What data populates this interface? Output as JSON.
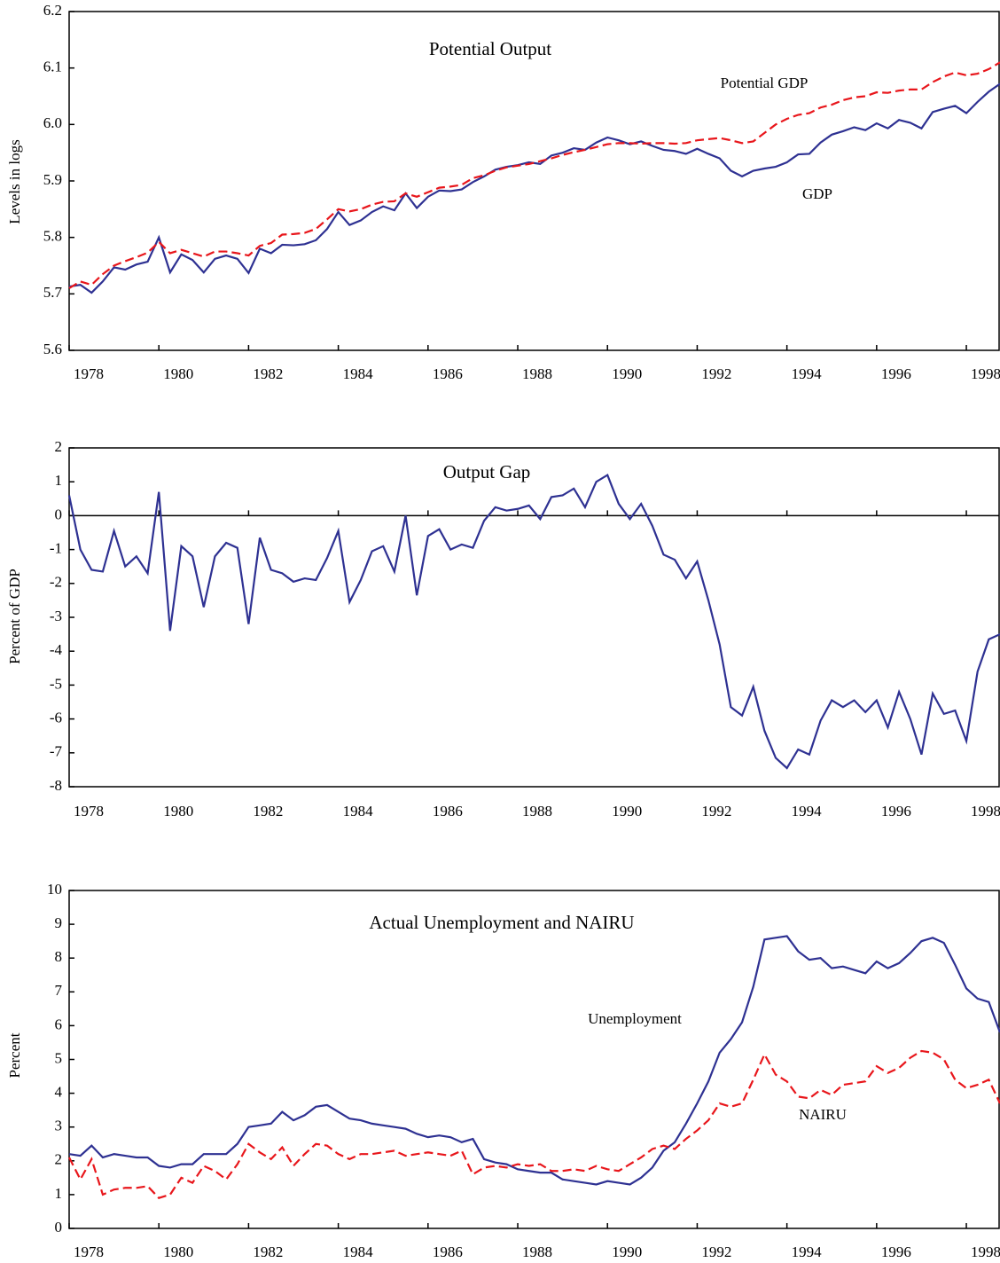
{
  "chart_data": [
    {
      "type": "line",
      "title": "Potential Output",
      "ylabel": "Levels in logs",
      "annotations": [
        "Potential GDP",
        "GDP"
      ],
      "x": [
        1978,
        1978.25,
        1978.5,
        1978.75,
        1979,
        1979.25,
        1979.5,
        1979.75,
        1980,
        1980.25,
        1980.5,
        1980.75,
        1981,
        1981.25,
        1981.5,
        1981.75,
        1982,
        1982.25,
        1982.5,
        1982.75,
        1983,
        1983.25,
        1983.5,
        1983.75,
        1984,
        1984.25,
        1984.5,
        1984.75,
        1985,
        1985.25,
        1985.5,
        1985.75,
        1986,
        1986.25,
        1986.5,
        1986.75,
        1987,
        1987.25,
        1987.5,
        1987.75,
        1988,
        1988.25,
        1988.5,
        1988.75,
        1989,
        1989.25,
        1989.5,
        1989.75,
        1990,
        1990.25,
        1990.5,
        1990.75,
        1991,
        1991.25,
        1991.5,
        1991.75,
        1992,
        1992.25,
        1992.5,
        1992.75,
        1993,
        1993.25,
        1993.5,
        1993.75,
        1994,
        1994.25,
        1994.5,
        1994.75,
        1995,
        1995.25,
        1995.5,
        1995.75,
        1996,
        1996.25,
        1996.5,
        1996.75,
        1997,
        1997.25,
        1997.5,
        1997.75,
        1998,
        1998.25,
        1998.5,
        1998.75
      ],
      "series": [
        {
          "name": "GDP",
          "color": "#2e3192",
          "style": "solid",
          "values": [
            5.713,
            5.716,
            5.702,
            5.722,
            5.747,
            5.743,
            5.752,
            5.757,
            5.8,
            5.738,
            5.77,
            5.76,
            5.738,
            5.762,
            5.768,
            5.762,
            5.737,
            5.78,
            5.772,
            5.787,
            5.786,
            5.788,
            5.795,
            5.815,
            5.845,
            5.822,
            5.83,
            5.845,
            5.855,
            5.848,
            5.878,
            5.852,
            5.872,
            5.883,
            5.882,
            5.885,
            5.898,
            5.908,
            5.92,
            5.925,
            5.928,
            5.933,
            5.93,
            5.945,
            5.95,
            5.958,
            5.955,
            5.968,
            5.977,
            5.972,
            5.965,
            5.97,
            5.962,
            5.955,
            5.953,
            5.948,
            5.957,
            5.948,
            5.94,
            5.918,
            5.908,
            5.918,
            5.922,
            5.925,
            5.933,
            5.947,
            5.948,
            5.968,
            5.982,
            5.988,
            5.995,
            5.99,
            6.002,
            5.993,
            6.008,
            6.003,
            5.993,
            6.022,
            6.028,
            6.033,
            6.02,
            6.04,
            6.058,
            6.072
          ]
        },
        {
          "name": "Potential GDP",
          "color": "#e8161b",
          "style": "dashed",
          "values": [
            5.71,
            5.722,
            5.716,
            5.735,
            5.75,
            5.758,
            5.765,
            5.773,
            5.792,
            5.772,
            5.778,
            5.772,
            5.766,
            5.775,
            5.775,
            5.772,
            5.768,
            5.785,
            5.79,
            5.805,
            5.806,
            5.808,
            5.815,
            5.832,
            5.85,
            5.846,
            5.85,
            5.858,
            5.863,
            5.864,
            5.878,
            5.872,
            5.88,
            5.888,
            5.89,
            5.893,
            5.905,
            5.91,
            5.918,
            5.924,
            5.927,
            5.93,
            5.935,
            5.94,
            5.946,
            5.951,
            5.955,
            5.96,
            5.965,
            5.967,
            5.967,
            5.966,
            5.967,
            5.967,
            5.966,
            5.967,
            5.972,
            5.974,
            5.976,
            5.972,
            5.967,
            5.97,
            5.985,
            6.0,
            6.01,
            6.017,
            6.02,
            6.03,
            6.035,
            6.043,
            6.048,
            6.05,
            6.057,
            6.056,
            6.06,
            6.062,
            6.062,
            6.075,
            6.085,
            6.092,
            6.087,
            6.09,
            6.098,
            6.11
          ]
        }
      ],
      "xlim": [
        1978,
        1998.75
      ],
      "xticks": [
        1978,
        1980,
        1982,
        1984,
        1986,
        1988,
        1990,
        1992,
        1994,
        1996,
        1998
      ],
      "ylim": [
        5.6,
        6.2
      ],
      "yticks": [
        5.6,
        5.7,
        5.8,
        5.9,
        {
          "value": 6,
          "label": "6.0"
        },
        6.1,
        6.2
      ]
    },
    {
      "type": "line",
      "title": "Output Gap",
      "ylabel": "Percent of GDP",
      "x": [
        1978,
        1978.25,
        1978.5,
        1978.75,
        1979,
        1979.25,
        1979.5,
        1979.75,
        1980,
        1980.25,
        1980.5,
        1980.75,
        1981,
        1981.25,
        1981.5,
        1981.75,
        1982,
        1982.25,
        1982.5,
        1982.75,
        1983,
        1983.25,
        1983.5,
        1983.75,
        1984,
        1984.25,
        1984.5,
        1984.75,
        1985,
        1985.25,
        1985.5,
        1985.75,
        1986,
        1986.25,
        1986.5,
        1986.75,
        1987,
        1987.25,
        1987.5,
        1987.75,
        1988,
        1988.25,
        1988.5,
        1988.75,
        1989,
        1989.25,
        1989.5,
        1989.75,
        1990,
        1990.25,
        1990.5,
        1990.75,
        1991,
        1991.25,
        1991.5,
        1991.75,
        1992,
        1992.25,
        1992.5,
        1992.75,
        1993,
        1993.25,
        1993.5,
        1993.75,
        1994,
        1994.25,
        1994.5,
        1994.75,
        1995,
        1995.25,
        1995.5,
        1995.75,
        1996,
        1996.25,
        1996.5,
        1996.75,
        1997,
        1997.25,
        1997.5,
        1997.75,
        1998,
        1998.25,
        1998.5,
        1998.75
      ],
      "series": [
        {
          "color": "#2e3192",
          "style": "solid",
          "values": [
            0.6,
            -1.0,
            -1.6,
            -1.65,
            -0.45,
            -1.5,
            -1.2,
            -1.7,
            0.7,
            -3.4,
            -0.9,
            -1.2,
            -2.7,
            -1.2,
            -0.8,
            -0.95,
            -3.2,
            -0.65,
            -1.6,
            -1.7,
            -1.95,
            -1.85,
            -1.9,
            -1.25,
            -0.45,
            -2.55,
            -1.9,
            -1.05,
            -0.9,
            -1.65,
            0.0,
            -2.35,
            -0.6,
            -0.4,
            -1.0,
            -0.85,
            -0.95,
            -0.15,
            0.25,
            0.15,
            0.2,
            0.3,
            -0.1,
            0.55,
            0.6,
            0.8,
            0.25,
            1.0,
            1.2,
            0.35,
            -0.1,
            0.35,
            -0.3,
            -1.15,
            -1.3,
            -1.85,
            -1.35,
            -2.5,
            -3.8,
            -5.65,
            -5.9,
            -5.05,
            -6.35,
            -7.15,
            -7.45,
            -6.9,
            -7.05,
            -6.05,
            -5.45,
            -5.65,
            -5.45,
            -5.8,
            -5.45,
            -6.25,
            -5.2,
            -6.0,
            -7.05,
            -5.25,
            -5.85,
            -5.75,
            -6.65,
            -4.6,
            -3.65,
            -3.5
          ]
        }
      ],
      "xlim": [
        1978,
        1998.75
      ],
      "xticks": [
        1978,
        1980,
        1982,
        1984,
        1986,
        1988,
        1990,
        1992,
        1994,
        1996,
        1998
      ],
      "ylim": [
        -8,
        2
      ],
      "yticks": [
        -8,
        -7,
        -6,
        -5,
        -4,
        -3,
        -2,
        -1,
        0,
        1,
        2
      ],
      "zero_line": true
    },
    {
      "type": "line",
      "title": "Actual Unemployment and NAIRU",
      "ylabel": "Percent",
      "annotations": [
        "Unemployment",
        "NAIRU"
      ],
      "x": [
        1978,
        1978.25,
        1978.5,
        1978.75,
        1979,
        1979.25,
        1979.5,
        1979.75,
        1980,
        1980.25,
        1980.5,
        1980.75,
        1981,
        1981.25,
        1981.5,
        1981.75,
        1982,
        1982.25,
        1982.5,
        1982.75,
        1983,
        1983.25,
        1983.5,
        1983.75,
        1984,
        1984.25,
        1984.5,
        1984.75,
        1985,
        1985.25,
        1985.5,
        1985.75,
        1986,
        1986.25,
        1986.5,
        1986.75,
        1987,
        1987.25,
        1987.5,
        1987.75,
        1988,
        1988.25,
        1988.5,
        1988.75,
        1989,
        1989.25,
        1989.5,
        1989.75,
        1990,
        1990.25,
        1990.5,
        1990.75,
        1991,
        1991.25,
        1991.5,
        1991.75,
        1992,
        1992.25,
        1992.5,
        1992.75,
        1993,
        1993.25,
        1993.5,
        1993.75,
        1994,
        1994.25,
        1994.5,
        1994.75,
        1995,
        1995.25,
        1995.5,
        1995.75,
        1996,
        1996.25,
        1996.5,
        1996.75,
        1997,
        1997.25,
        1997.5,
        1997.75,
        1998,
        1998.25,
        1998.5,
        1998.75
      ],
      "series": [
        {
          "name": "Unemployment",
          "color": "#2e3192",
          "style": "solid",
          "values": [
            2.2,
            2.15,
            2.45,
            2.1,
            2.2,
            2.15,
            2.1,
            2.1,
            1.85,
            1.8,
            1.9,
            1.9,
            2.2,
            2.2,
            2.2,
            2.5,
            3.0,
            3.05,
            3.1,
            3.45,
            3.2,
            3.35,
            3.6,
            3.65,
            3.45,
            3.25,
            3.2,
            3.1,
            3.05,
            3.0,
            2.95,
            2.8,
            2.7,
            2.75,
            2.7,
            2.55,
            2.65,
            2.05,
            1.95,
            1.9,
            1.75,
            1.7,
            1.65,
            1.65,
            1.45,
            1.4,
            1.35,
            1.3,
            1.4,
            1.35,
            1.3,
            1.5,
            1.8,
            2.3,
            2.55,
            3.1,
            3.7,
            4.35,
            5.2,
            5.6,
            6.1,
            7.15,
            8.55,
            8.6,
            8.65,
            8.2,
            7.95,
            8.0,
            7.7,
            7.75,
            7.65,
            7.55,
            7.9,
            7.7,
            7.85,
            8.15,
            8.5,
            8.6,
            8.45,
            7.8,
            7.1,
            6.8,
            6.7,
            5.8
          ]
        },
        {
          "name": "NAIRU",
          "color": "#e8161b",
          "style": "dashed",
          "values": [
            2.1,
            1.45,
            2.05,
            1.0,
            1.15,
            1.2,
            1.2,
            1.25,
            0.9,
            1.0,
            1.5,
            1.35,
            1.85,
            1.7,
            1.45,
            1.9,
            2.5,
            2.25,
            2.05,
            2.4,
            1.85,
            2.2,
            2.5,
            2.45,
            2.2,
            2.05,
            2.2,
            2.2,
            2.25,
            2.3,
            2.15,
            2.2,
            2.25,
            2.2,
            2.15,
            2.3,
            1.6,
            1.8,
            1.85,
            1.8,
            1.9,
            1.85,
            1.9,
            1.7,
            1.7,
            1.75,
            1.7,
            1.85,
            1.75,
            1.7,
            1.9,
            2.1,
            2.35,
            2.45,
            2.35,
            2.65,
            2.9,
            3.2,
            3.7,
            3.6,
            3.7,
            4.4,
            5.15,
            4.55,
            4.35,
            3.9,
            3.85,
            4.1,
            3.95,
            4.25,
            4.3,
            4.35,
            4.8,
            4.6,
            4.75,
            5.05,
            5.25,
            5.2,
            5.0,
            4.4,
            4.15,
            4.25,
            4.4,
            3.7
          ]
        }
      ],
      "xlim": [
        1978,
        1998.75
      ],
      "xticks": [
        1978,
        1980,
        1982,
        1984,
        1986,
        1988,
        1990,
        1992,
        1994,
        1996,
        1998
      ],
      "ylim": [
        0,
        10
      ],
      "yticks": [
        0,
        1,
        2,
        3,
        4,
        5,
        6,
        7,
        8,
        9,
        10
      ]
    }
  ]
}
